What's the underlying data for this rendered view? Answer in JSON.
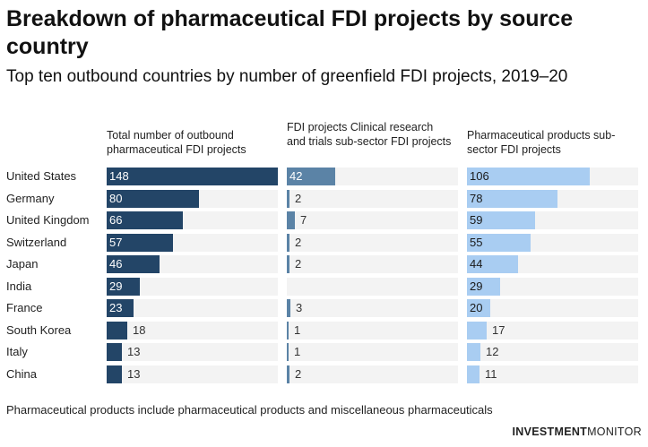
{
  "title": "Breakdown of pharmaceutical FDI projects by source country",
  "subtitle": "Top ten outbound countries by number of greenfield FDI projects, 2019–20",
  "note": "Pharmaceutical products include pharmaceutical products and miscellaneous pharmaceuticals",
  "brand": {
    "part1": "INVESTMENT",
    "part2": "MONITOR"
  },
  "colors": {
    "total": "#234567",
    "clinical": "#5b83a6",
    "products": "#a9cdf2",
    "track": "#f3f3f3"
  },
  "chart_data": {
    "type": "bar",
    "categories": [
      "United States",
      "Germany",
      "United Kingdom",
      "Switzerland",
      "Japan",
      "India",
      "France",
      "South Korea",
      "Italy",
      "China"
    ],
    "series": [
      {
        "name": "Total number of outbound pharmaceutical FDI projects",
        "values": [
          148,
          80,
          66,
          57,
          46,
          29,
          23,
          18,
          13,
          13
        ]
      },
      {
        "name": "FDI projects Clinical research and trials sub-sector FDI projects",
        "values": [
          42,
          2,
          7,
          2,
          2,
          null,
          3,
          1,
          1,
          2
        ]
      },
      {
        "name": "Pharmaceutical products sub-sector FDI projects",
        "values": [
          106,
          78,
          59,
          55,
          44,
          29,
          20,
          17,
          12,
          11
        ]
      }
    ],
    "xlim": [
      0,
      148
    ]
  }
}
